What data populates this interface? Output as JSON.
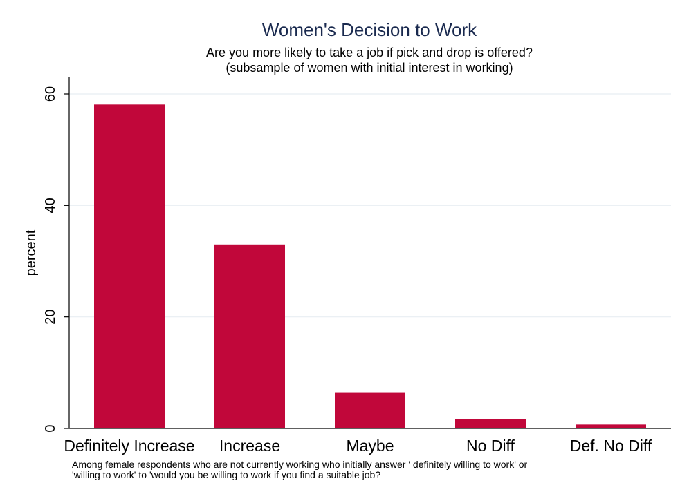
{
  "chart_data": {
    "type": "bar",
    "title": "Women's Decision to Work",
    "subtitle": [
      "Are you more likely to take a job if pick and drop is offered?",
      "(subsample of women with initial interest in working)"
    ],
    "ylabel": "percent",
    "xlabel": "",
    "categories": [
      "Definitely Increase",
      "Increase",
      "Maybe",
      "No Diff",
      "Def. No Diff"
    ],
    "values": [
      58.1,
      33.0,
      6.5,
      1.7,
      0.7
    ],
    "ylim": [
      0,
      60
    ],
    "yticks": [
      0,
      20,
      40,
      60
    ],
    "grid": true,
    "bar_color": "#c1073a",
    "note": [
      "Among female respondents who are not currently working who initially answer ' definitely willing to work' or",
      " 'willing to work' to 'would you be willing to work if you find a suitable job?"
    ]
  }
}
